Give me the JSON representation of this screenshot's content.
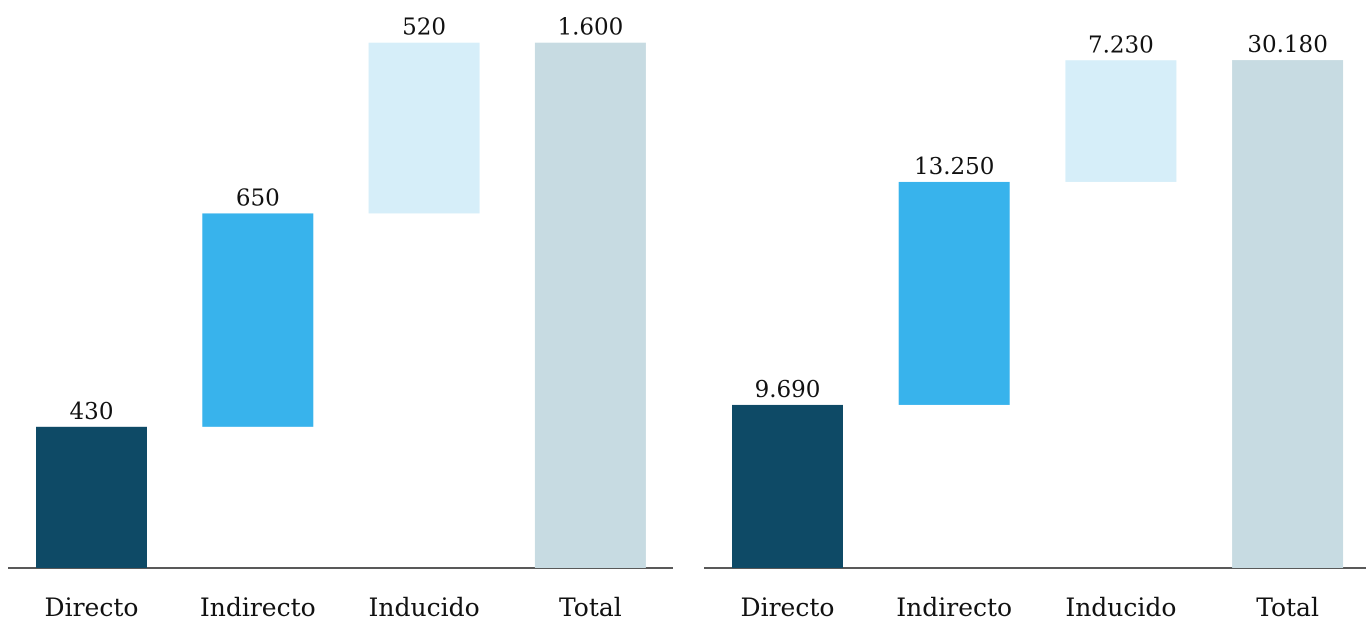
{
  "chart_data": [
    {
      "type": "waterfall",
      "categories": [
        "Directo",
        "Indirecto",
        "Inducido",
        "Total"
      ],
      "values": [
        430,
        650,
        520,
        1600
      ],
      "value_labels": [
        "430",
        "650",
        "520",
        "1.600"
      ],
      "colors": [
        "#0e4a66",
        "#38b3ec",
        "#d6eef9",
        "#c7dbe2"
      ],
      "ylim": [
        0,
        1730
      ]
    },
    {
      "type": "waterfall",
      "categories": [
        "Directo",
        "Indirecto",
        "Inducido",
        "Total"
      ],
      "values": [
        9690,
        13250,
        7230,
        30180
      ],
      "value_labels": [
        "9.690",
        "13.250",
        "7.230",
        "30.180"
      ],
      "colors": [
        "#0e4a66",
        "#38b3ec",
        "#d6eef9",
        "#c7dbe2"
      ],
      "ylim": [
        0,
        33750
      ]
    }
  ]
}
